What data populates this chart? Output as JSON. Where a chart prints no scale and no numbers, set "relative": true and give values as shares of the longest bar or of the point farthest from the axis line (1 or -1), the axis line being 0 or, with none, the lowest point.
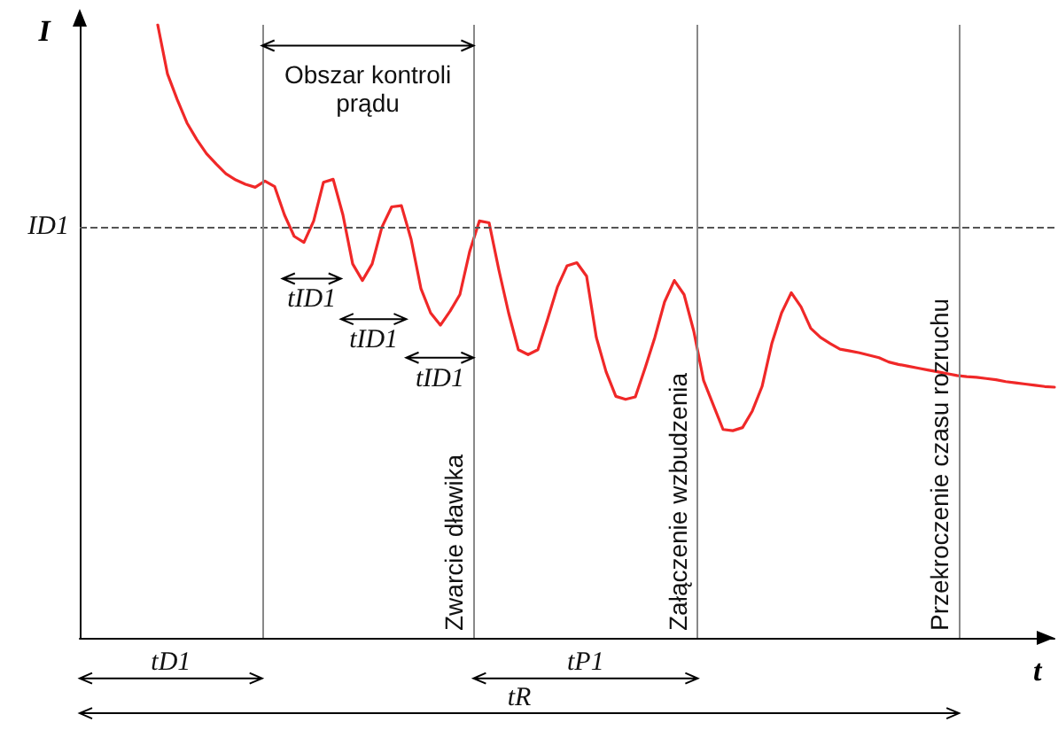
{
  "chart_data": {
    "type": "line",
    "relative": true,
    "xlabel": "t",
    "ylabel": "I",
    "color": "#f02828",
    "marker": "none",
    "line_style": "solid",
    "grid": false,
    "categories": [
      null,
      null,
      null,
      null,
      null,
      null,
      null,
      null,
      null,
      null,
      null,
      null,
      null,
      null,
      null,
      null,
      null,
      null,
      null,
      null,
      null,
      null,
      null,
      null,
      null,
      null,
      null,
      null,
      null,
      null,
      null,
      null,
      null,
      null,
      null,
      null,
      null,
      null,
      null,
      null,
      null,
      null,
      null,
      null,
      null,
      null,
      null,
      null,
      null,
      null,
      null,
      null,
      null,
      null,
      null,
      null,
      null,
      null,
      null,
      null,
      null,
      null,
      null,
      null,
      null,
      null,
      null,
      null,
      null,
      null,
      null,
      null,
      null,
      null,
      null,
      null,
      null,
      null,
      null,
      null,
      null,
      null,
      null,
      null,
      null,
      null,
      null,
      null,
      null,
      null,
      null,
      null,
      null,
      null,
      null,
      null,
      null,
      null,
      null,
      null,
      null
    ],
    "values": [
      null,
      null,
      null,
      null,
      null,
      null,
      null,
      null,
      1.0,
      0.92,
      0.878,
      0.84,
      0.813,
      0.79,
      0.773,
      0.757,
      0.747,
      0.74,
      0.735,
      0.745,
      0.736,
      0.69,
      0.655,
      0.645,
      0.68,
      0.743,
      0.748,
      0.69,
      0.61,
      0.583,
      0.61,
      0.67,
      0.703,
      0.705,
      0.65,
      0.57,
      0.53,
      0.51,
      0.533,
      0.56,
      0.63,
      0.68,
      0.677,
      0.6,
      0.53,
      0.47,
      0.462,
      0.47,
      0.52,
      0.572,
      0.607,
      0.612,
      0.59,
      0.49,
      0.434,
      0.394,
      0.389,
      0.393,
      0.44,
      0.49,
      0.548,
      0.583,
      0.56,
      0.5,
      0.42,
      0.38,
      0.34,
      0.338,
      0.343,
      0.37,
      0.41,
      0.48,
      0.53,
      0.563,
      0.54,
      0.505,
      0.49,
      0.48,
      0.471,
      0.468,
      0.465,
      0.461,
      0.457,
      0.45,
      0.446,
      0.443,
      0.44,
      0.437,
      0.434,
      0.431,
      0.428,
      0.426,
      0.425,
      0.423,
      0.421,
      0.418,
      0.416,
      0.414,
      0.412,
      0.41,
      0.409
    ],
    "ref_lines": [
      {
        "axis": "y",
        "value": 0.666,
        "label": "ID1",
        "color": "#555555",
        "line_style": "dashed"
      }
    ],
    "annotations": [
      "Obszar kontroli prądu",
      "tID1",
      "tID1",
      "tID1",
      "tD1",
      "tP1",
      "tR",
      "Zwarcie dławika",
      "Załączenie wzbudzenia",
      "Przekroczenie czasu rozruchu"
    ]
  }
}
